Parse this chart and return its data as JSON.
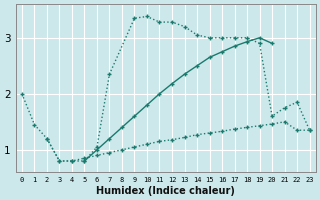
{
  "xlabel": "Humidex (Indice chaleur)",
  "ylabel": "",
  "background_color": "#cce8eb",
  "grid_color": "#ffffff",
  "line_color": "#1a7a6e",
  "xlim": [
    -0.5,
    23.5
  ],
  "ylim": [
    0.6,
    3.6
  ],
  "yticks": [
    1,
    2,
    3
  ],
  "xticks": [
    0,
    1,
    2,
    3,
    4,
    5,
    6,
    7,
    8,
    9,
    10,
    11,
    12,
    13,
    14,
    15,
    16,
    17,
    18,
    19,
    20,
    21,
    22,
    23
  ],
  "series1_x": [
    0,
    1,
    2,
    3,
    4,
    5,
    6,
    7,
    9,
    10,
    11,
    12,
    13,
    14,
    15,
    16,
    17,
    18,
    19,
    20,
    21,
    22,
    23
  ],
  "series1_y": [
    2.0,
    1.45,
    1.2,
    0.8,
    0.8,
    0.8,
    1.05,
    2.35,
    3.35,
    3.38,
    3.28,
    3.28,
    3.2,
    3.05,
    3.0,
    3.0,
    3.0,
    3.0,
    2.9,
    1.6,
    1.75,
    1.85,
    1.35
  ],
  "series1_style": "dotted",
  "series2_x": [
    5,
    6,
    7,
    8,
    9,
    10,
    11,
    12,
    13,
    14,
    15,
    16,
    17,
    18,
    19,
    20
  ],
  "series2_y": [
    0.8,
    1.0,
    1.2,
    1.4,
    1.6,
    1.8,
    2.0,
    2.18,
    2.35,
    2.5,
    2.65,
    2.75,
    2.85,
    2.93,
    3.0,
    2.9
  ],
  "series2_style": "solid",
  "series3_x": [
    2,
    3,
    4,
    5,
    6,
    7,
    8,
    9,
    10,
    11,
    12,
    13,
    14,
    15,
    16,
    17,
    18,
    19,
    20,
    21,
    22,
    23
  ],
  "series3_y": [
    1.2,
    0.8,
    0.8,
    0.85,
    0.9,
    0.95,
    1.0,
    1.05,
    1.1,
    1.15,
    1.18,
    1.22,
    1.27,
    1.3,
    1.33,
    1.37,
    1.4,
    1.43,
    1.46,
    1.5,
    1.35,
    1.35
  ],
  "series3_style": "dotted"
}
